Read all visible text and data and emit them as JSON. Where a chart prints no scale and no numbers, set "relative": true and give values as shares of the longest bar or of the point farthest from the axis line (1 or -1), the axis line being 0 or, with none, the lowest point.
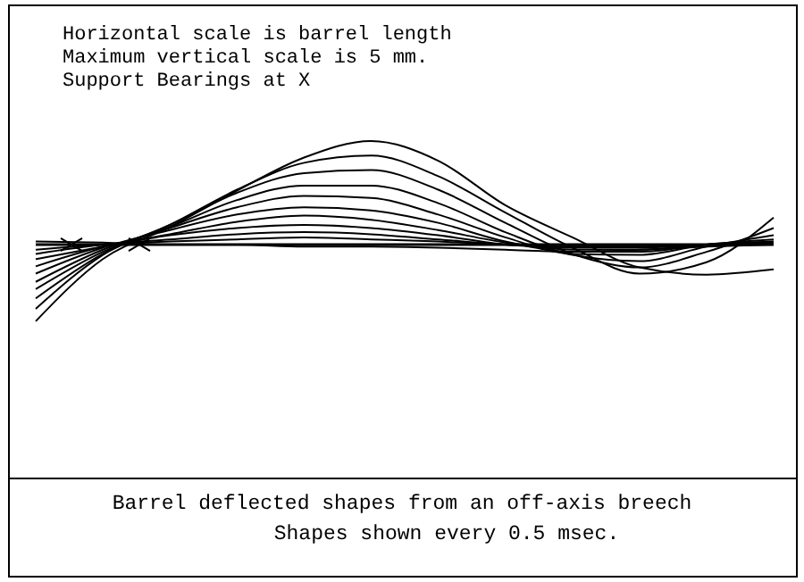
{
  "chart_data": {
    "type": "line",
    "relative": true,
    "marker": "none",
    "line_style": "solid",
    "categories": [
      null,
      null,
      null,
      null,
      null,
      null,
      null,
      null,
      null,
      null,
      null,
      null
    ],
    "annotations": [
      "Horizontal scale is barrel length",
      "Maximum vertical scale is 5 mm.",
      "Support Bearings at X",
      "Barrel deflected shapes from an off-axis breech",
      "Shapes shown every 0.5 msec."
    ],
    "series": [
      {
        "color": "#000000",
        "values": [
          0.03,
          0.02,
          0,
          0,
          -0.02,
          -0.02,
          -0.03,
          -0.05,
          -0.07,
          -0.05,
          -0.02,
          0
        ]
      },
      {
        "color": "#000000",
        "values": [
          -0.05,
          0,
          0.03,
          0.05,
          0.07,
          0.05,
          0.03,
          0,
          -0.02,
          -0.02,
          0,
          0
        ]
      },
      {
        "color": "#000000",
        "values": [
          -0.09,
          0,
          0.05,
          0.1,
          0.12,
          0.1,
          0.05,
          0,
          -0.02,
          -0.02,
          0,
          0
        ]
      },
      {
        "color": "#000000",
        "values": [
          -0.14,
          -0.02,
          0.09,
          0.16,
          0.19,
          0.16,
          0.09,
          0,
          -0.03,
          -0.03,
          0,
          0.02
        ]
      },
      {
        "color": "#000000",
        "values": [
          -0.21,
          -0.02,
          0.1,
          0.22,
          0.28,
          0.24,
          0.14,
          0.02,
          -0.05,
          -0.05,
          0,
          0.02
        ]
      },
      {
        "color": "#000000",
        "values": [
          -0.28,
          -0.03,
          0.14,
          0.29,
          0.36,
          0.33,
          0.21,
          0.03,
          -0.07,
          -0.07,
          0,
          0.03
        ]
      },
      {
        "color": "#000000",
        "values": [
          -0.36,
          -0.05,
          0.16,
          0.36,
          0.47,
          0.45,
          0.29,
          0.07,
          -0.09,
          -0.1,
          0,
          0.05
        ]
      },
      {
        "color": "#000000",
        "values": [
          -0.43,
          -0.07,
          0.17,
          0.43,
          0.57,
          0.57,
          0.4,
          0.12,
          -0.1,
          -0.16,
          -0.02,
          0.09
        ]
      },
      {
        "color": "#000000",
        "values": [
          -0.52,
          -0.09,
          0.19,
          0.5,
          0.69,
          0.72,
          0.53,
          0.21,
          -0.09,
          -0.22,
          -0.07,
          0.16
        ]
      },
      {
        "color": "#000000",
        "values": [
          -0.62,
          -0.1,
          0.19,
          0.53,
          0.79,
          0.86,
          0.66,
          0.31,
          -0.03,
          -0.28,
          -0.17,
          0.26
        ]
      },
      {
        "color": "#000000",
        "values": [
          -0.74,
          -0.14,
          0.17,
          0.52,
          0.84,
          1,
          0.81,
          0.38,
          0.07,
          -0.22,
          -0.29,
          -0.24
        ]
      }
    ]
  }
}
